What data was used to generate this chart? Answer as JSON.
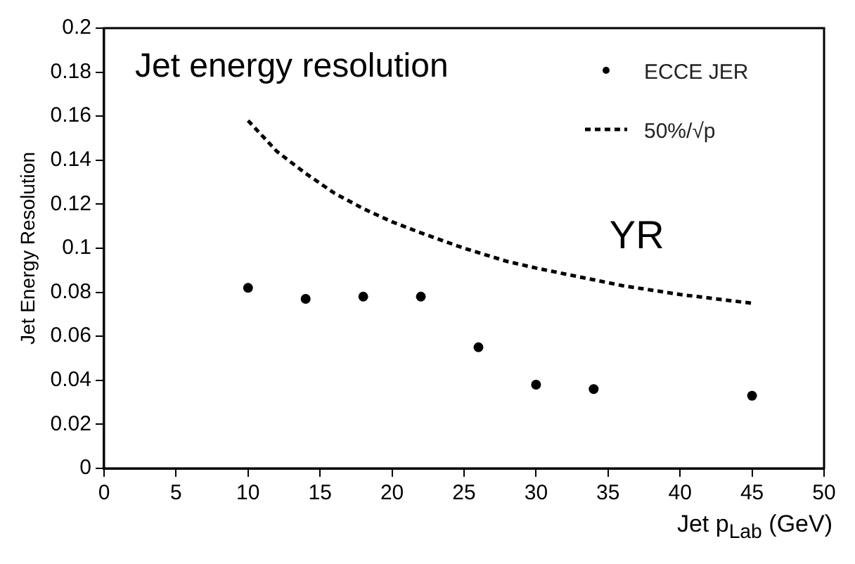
{
  "chart_data": {
    "type": "scatter",
    "title": "Jet energy resolution",
    "xlabel": "Jet p$_{Lab}$ (GeV)",
    "ylabel": "Jet Energy Resolution",
    "xlim": [
      0,
      50
    ],
    "xticks": [
      0,
      5,
      10,
      15,
      20,
      25,
      30,
      35,
      40,
      45,
      50
    ],
    "ylim": [
      0,
      0.2
    ],
    "yticks": [
      0,
      0.02,
      0.04,
      0.06,
      0.08,
      0.1,
      0.12,
      0.14,
      0.16,
      0.18,
      0.2
    ],
    "grid": false,
    "legend": "top right",
    "series": [
      {
        "name": "ECCE JER",
        "type": "scatter",
        "color": "#000000",
        "marker": "circle",
        "x": [
          10,
          14,
          18,
          22,
          26,
          30,
          34,
          45
        ],
        "values": [
          0.082,
          0.077,
          0.078,
          0.078,
          0.055,
          0.038,
          0.036,
          0.033
        ]
      },
      {
        "name": "50%/√p",
        "type": "line",
        "color": "#000000",
        "marker": "none",
        "line_style": "dashed",
        "x": [
          10,
          12,
          14,
          16,
          18,
          20,
          22,
          25,
          28,
          30,
          33,
          36,
          40,
          45
        ],
        "values": [
          0.158,
          0.144,
          0.134,
          0.125,
          0.118,
          0.112,
          0.107,
          0.1,
          0.094,
          0.091,
          0.087,
          0.083,
          0.079,
          0.075
        ]
      }
    ],
    "annotations": [
      "YR"
    ]
  }
}
